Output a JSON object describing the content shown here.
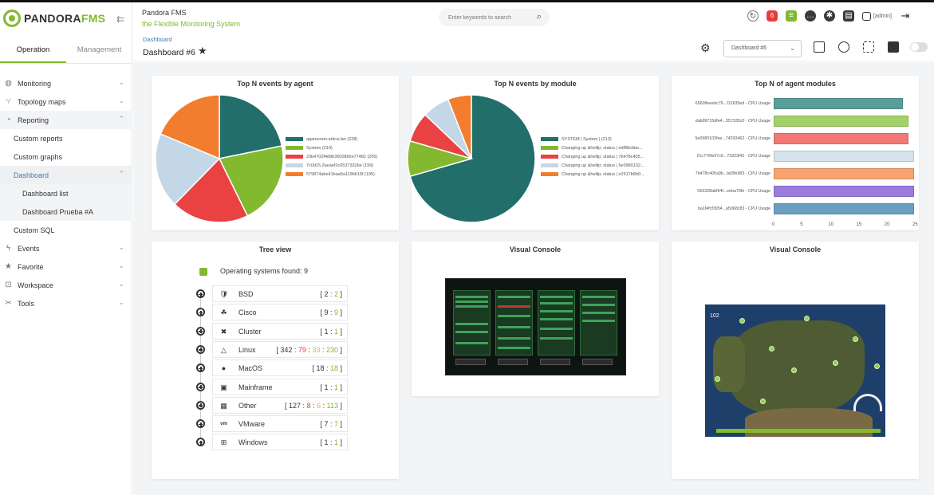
{
  "app": {
    "logo_a": "PANDORA",
    "logo_b": "FMS",
    "title": "Pandora FMS",
    "subtitle": "the Flexible Monitoring System"
  },
  "search": {
    "placeholder": "Enter keywords to search"
  },
  "header": {
    "notifications_count": "6",
    "user": "[admin]"
  },
  "sidebar": {
    "tabs": [
      "Operation",
      "Management"
    ],
    "items": {
      "monitoring": "Monitoring",
      "topology": "Topology maps",
      "reporting": "Reporting",
      "custom_reports": "Custom reports",
      "custom_graphs": "Custom graphs",
      "dashboard": "Dashboard",
      "dashboard_list": "Dashboard list",
      "dashboard_prueba": "Dashboard Prueba #A",
      "custom_sql": "Custom SQL",
      "events": "Events",
      "favorite": "Favorite",
      "workspace": "Workspace",
      "tools": "Tools"
    }
  },
  "breadcrumb": "Dashboard",
  "page_title": "Dashboard #6",
  "dashboard_select": "Dashboard #6",
  "widgets": {
    "w1": {
      "title": "Top N events by agent",
      "chart_data": {
        "type": "pie",
        "labels": [
          "agamenon.artica.lan (228)",
          "System (219)",
          "23b4702f4d9b35008b5e77482 (205)",
          "7c0d15.2aeaef2c0537332be (199)",
          "579874abe41baa5a119b615f (195)"
        ],
        "values": [
          228,
          219,
          205,
          199,
          195
        ],
        "colors": [
          "#226e6b",
          "#82b92e",
          "#ea4142",
          "#c4d7e6",
          "#f27d2f"
        ]
      }
    },
    "w2": {
      "title": "Top N events by module",
      "chart_data": {
        "type": "pie",
        "labels": [
          "SYSTEM | System | (213)",
          "Changing up &hellip; status | edf98cbbe...",
          "Changing up &hellip; status | 7b478c405...",
          "Changing up &hellip; status | 5e0980102...",
          "Changing up &hellip; status | e2517b8b9..."
        ],
        "values": [
          213,
          27,
          23,
          21,
          18
        ],
        "colors": [
          "#226e6b",
          "#82b92e",
          "#ea4142",
          "#c4d7e6",
          "#f27d2f"
        ]
      }
    },
    "w3": {
      "title": "Top N of agent modules",
      "chart_data": {
        "type": "bar",
        "orientation": "horizontal",
        "categories": [
          "65608eeebc76...f12635ed - CPU Usage",
          "dab99715dfe4...357335c0 - CPU Usage",
          "5e0980102fee...74293462 - CPU Usage",
          "21c776fe67c6...73323f42 - CPU Usage",
          "7b478c405a9b...bd3fe983 - CPU Usage",
          "053328abf94f...eeba76fe - CPU Usage",
          "ba1f4fcf3954...a5d68c83 - CPU Usage"
        ],
        "values": [
          23,
          24,
          24,
          25,
          25,
          25,
          25
        ],
        "colors": [
          "#5a9e9a",
          "#a2d168",
          "#f27878",
          "#d6e3ee",
          "#f9a36f",
          "#9b7be0",
          "#6b9fc0"
        ],
        "xticks": [
          "0",
          "5",
          "10",
          "15",
          "20",
          "25"
        ],
        "xlim": [
          0,
          25
        ]
      }
    },
    "w4": {
      "title": "Tree view",
      "found": "Operating systems found: 9"
    },
    "w5": {
      "title": "Visual Console"
    },
    "w6": {
      "title": "Visual Console",
      "count": "102"
    }
  },
  "tree": [
    {
      "icon": "🛡",
      "name": "BSD",
      "parts": [
        {
          "t": "[ ",
          "c": ""
        },
        {
          "t": "2",
          "c": ""
        },
        {
          "t": " : ",
          "c": ""
        },
        {
          "t": "2",
          "c": "c-grn"
        },
        {
          "t": " ]",
          "c": ""
        }
      ]
    },
    {
      "icon": "☘",
      "name": "Cisco",
      "parts": [
        {
          "t": "[ ",
          "c": ""
        },
        {
          "t": "9",
          "c": ""
        },
        {
          "t": " : ",
          "c": ""
        },
        {
          "t": "9",
          "c": "c-grn"
        },
        {
          "t": " ]",
          "c": ""
        }
      ]
    },
    {
      "icon": "✖",
      "name": "Cluster",
      "parts": [
        {
          "t": "[ ",
          "c": ""
        },
        {
          "t": "1",
          "c": ""
        },
        {
          "t": " : ",
          "c": ""
        },
        {
          "t": "1",
          "c": "c-grn"
        },
        {
          "t": " ]",
          "c": ""
        }
      ]
    },
    {
      "icon": "△",
      "name": "Linux",
      "parts": [
        {
          "t": "[ ",
          "c": ""
        },
        {
          "t": "342",
          "c": ""
        },
        {
          "t": " : ",
          "c": ""
        },
        {
          "t": "79",
          "c": "c-red"
        },
        {
          "t": " : ",
          "c": ""
        },
        {
          "t": "33",
          "c": "c-yel"
        },
        {
          "t": " : ",
          "c": ""
        },
        {
          "t": "230",
          "c": "c-grn"
        },
        {
          "t": " ]",
          "c": ""
        }
      ]
    },
    {
      "icon": "●",
      "name": "MacOS",
      "parts": [
        {
          "t": "[ ",
          "c": ""
        },
        {
          "t": "18",
          "c": ""
        },
        {
          "t": " : ",
          "c": ""
        },
        {
          "t": "18",
          "c": "c-grn"
        },
        {
          "t": " ]",
          "c": ""
        }
      ]
    },
    {
      "icon": "▣",
      "name": "Mainframe",
      "parts": [
        {
          "t": "[ ",
          "c": ""
        },
        {
          "t": "1",
          "c": ""
        },
        {
          "t": " : ",
          "c": ""
        },
        {
          "t": "1",
          "c": "c-grn"
        },
        {
          "t": " ]",
          "c": ""
        }
      ]
    },
    {
      "icon": "▦",
      "name": "Other",
      "parts": [
        {
          "t": "[ ",
          "c": ""
        },
        {
          "t": "127",
          "c": ""
        },
        {
          "t": " : ",
          "c": ""
        },
        {
          "t": "8",
          "c": "c-red"
        },
        {
          "t": " : ",
          "c": ""
        },
        {
          "t": "6",
          "c": "c-yel"
        },
        {
          "t": " : ",
          "c": ""
        },
        {
          "t": "113",
          "c": "c-grn"
        },
        {
          "t": " ]",
          "c": ""
        }
      ]
    },
    {
      "icon": "vm",
      "name": "VMware",
      "parts": [
        {
          "t": "[ ",
          "c": ""
        },
        {
          "t": "7",
          "c": ""
        },
        {
          "t": " : ",
          "c": ""
        },
        {
          "t": "7",
          "c": "c-grn"
        },
        {
          "t": " ]",
          "c": ""
        }
      ]
    },
    {
      "icon": "⊞",
      "name": "Windows",
      "parts": [
        {
          "t": "[ ",
          "c": ""
        },
        {
          "t": "1",
          "c": ""
        },
        {
          "t": " : ",
          "c": ""
        },
        {
          "t": "1",
          "c": "c-grn"
        },
        {
          "t": " ]",
          "c": ""
        }
      ]
    }
  ]
}
